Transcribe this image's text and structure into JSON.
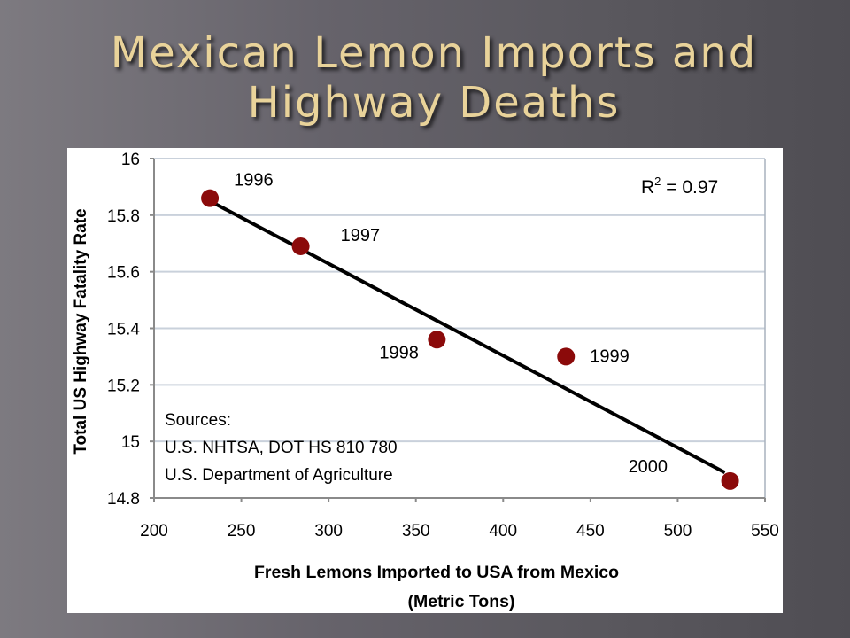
{
  "slide": {
    "title_line1": "Mexican Lemon Imports and",
    "title_line2": "Highway Deaths"
  },
  "colors": {
    "background": "#646168",
    "title": "#e9d39a",
    "point": "#8b0a0a",
    "trendline": "#000000",
    "grid": "#c9d1db"
  },
  "chart_data": {
    "type": "scatter",
    "title": "",
    "xlabel_line1": "Fresh Lemons Imported to USA from Mexico",
    "xlabel_line2": "(Metric Tons)",
    "ylabel": "Total US Highway Fatality Rate",
    "xlim": [
      200,
      550
    ],
    "ylim": [
      14.8,
      16
    ],
    "x_ticks": [
      200,
      250,
      300,
      350,
      400,
      450,
      500,
      550
    ],
    "y_ticks": [
      14.8,
      15,
      15.2,
      15.4,
      15.6,
      15.8,
      16
    ],
    "y_tick_labels": [
      "14.8",
      "15",
      "15.2",
      "15.4",
      "15.6",
      "15.8",
      "16"
    ],
    "grid": "horizontal",
    "points": [
      {
        "label": "1996",
        "x": 232,
        "y": 15.86
      },
      {
        "label": "1997",
        "x": 284,
        "y": 15.69
      },
      {
        "label": "1998",
        "x": 362,
        "y": 15.36
      },
      {
        "label": "1999",
        "x": 436,
        "y": 15.3
      },
      {
        "label": "2000",
        "x": 530,
        "y": 14.86
      }
    ],
    "trendline": {
      "x": [
        232,
        527
      ],
      "y": [
        15.85,
        14.89
      ]
    },
    "r_squared": {
      "prefix": "R",
      "sup": "2",
      "value": " = 0.97"
    },
    "sources": [
      "Sources:",
      "U.S. NHTSA, DOT HS 810 780",
      "U.S. Department of Agriculture"
    ]
  }
}
